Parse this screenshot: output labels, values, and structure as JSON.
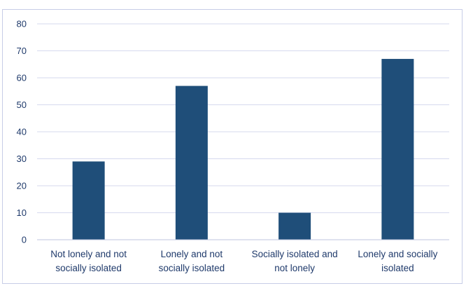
{
  "chart_data": {
    "type": "bar",
    "title": "",
    "xlabel": "",
    "ylabel": "",
    "ylim": [
      0,
      80
    ],
    "yticks": [
      0,
      10,
      20,
      30,
      40,
      50,
      60,
      70,
      80
    ],
    "grid": true,
    "categories": [
      [
        "Not lonely and not",
        "socially isolated"
      ],
      [
        "Lonely and not",
        "socially isolated"
      ],
      [
        "Socially isolated and",
        "not lonely"
      ],
      [
        "Lonely and socially",
        "isolated"
      ]
    ],
    "values": [
      29,
      57,
      10,
      67
    ],
    "colors": {
      "bar": "#1f4e79",
      "grid": "#d6d9ee",
      "axis": "#bfc5df",
      "text": "#1f3a6b"
    }
  }
}
